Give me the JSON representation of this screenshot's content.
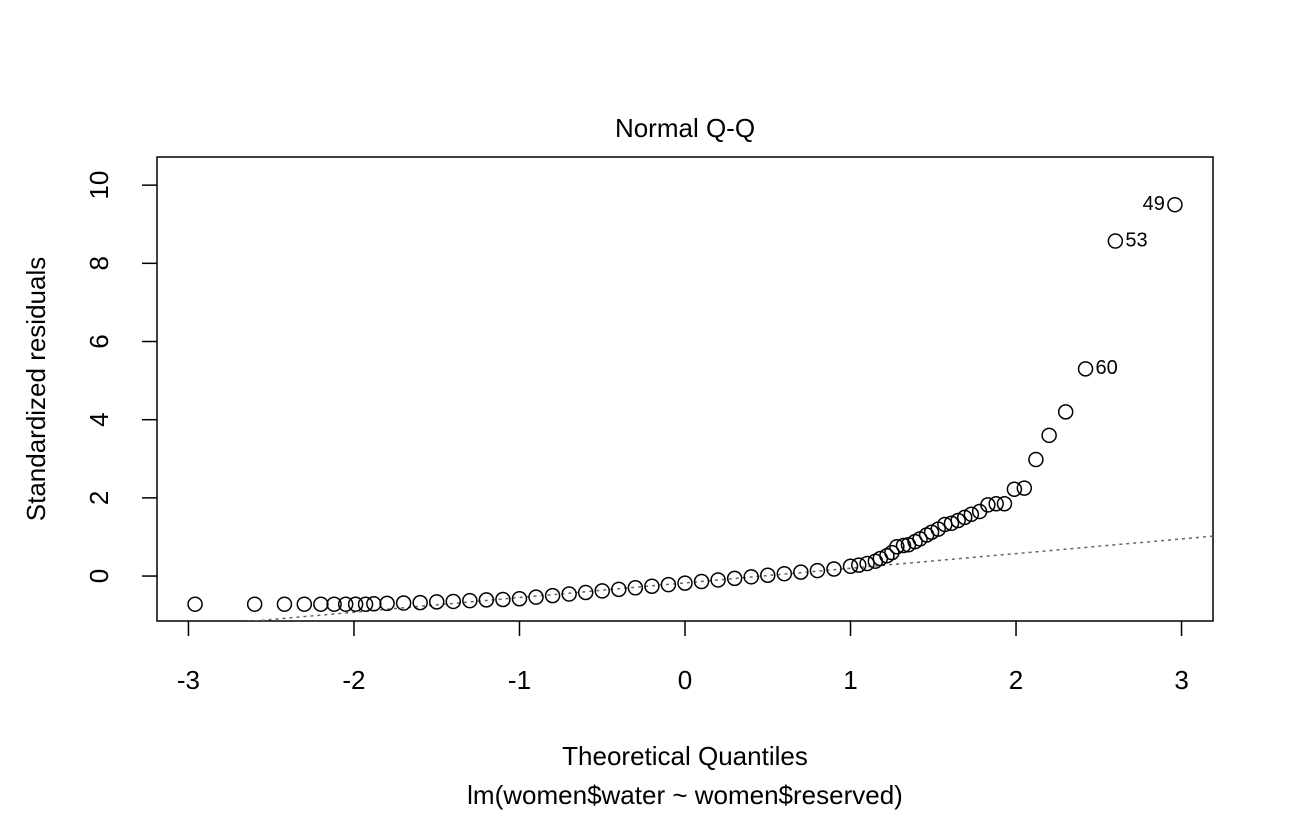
{
  "chart_data": {
    "type": "scatter",
    "title": "Normal Q-Q",
    "xlabel": "Theoretical Quantiles",
    "ylabel": "Standardized residuals",
    "subtitle": "lm(women$water ~ women$reserved)",
    "x": [
      -2.96,
      -2.6,
      -2.42,
      -2.3,
      -2.2,
      -2.12,
      -2.05,
      -1.99,
      -1.93,
      -1.88,
      -1.8,
      -1.7,
      -1.6,
      -1.5,
      -1.4,
      -1.3,
      -1.2,
      -1.1,
      -1.0,
      -0.9,
      -0.8,
      -0.7,
      -0.6,
      -0.5,
      -0.4,
      -0.3,
      -0.2,
      -0.1,
      0,
      0.1,
      0.2,
      0.3,
      0.4,
      0.5,
      0.6,
      0.7,
      0.8,
      0.9,
      1.0,
      1.05,
      1.1,
      1.15,
      1.18,
      1.22,
      1.25,
      1.28,
      1.32,
      1.35,
      1.39,
      1.42,
      1.46,
      1.49,
      1.53,
      1.57,
      1.61,
      1.65,
      1.69,
      1.73,
      1.78,
      1.83,
      1.88,
      1.93,
      1.99,
      2.05,
      2.12,
      2.2,
      2.3,
      2.42,
      2.6,
      2.96
    ],
    "values": [
      -0.72,
      -0.72,
      -0.72,
      -0.72,
      -0.72,
      -0.72,
      -0.72,
      -0.72,
      -0.72,
      -0.71,
      -0.7,
      -0.69,
      -0.68,
      -0.66,
      -0.65,
      -0.63,
      -0.61,
      -0.6,
      -0.58,
      -0.54,
      -0.5,
      -0.46,
      -0.42,
      -0.38,
      -0.34,
      -0.3,
      -0.26,
      -0.22,
      -0.18,
      -0.14,
      -0.1,
      -0.06,
      -0.02,
      0.02,
      0.06,
      0.1,
      0.14,
      0.18,
      0.25,
      0.28,
      0.32,
      0.38,
      0.45,
      0.52,
      0.6,
      0.75,
      0.78,
      0.8,
      0.88,
      0.95,
      1.05,
      1.12,
      1.2,
      1.32,
      1.35,
      1.42,
      1.5,
      1.58,
      1.65,
      1.82,
      1.85,
      1.85,
      2.22,
      2.25,
      2.98,
      3.6,
      4.2,
      5.3,
      8.57,
      9.5
    ],
    "point_labels": [
      null,
      null,
      null,
      null,
      null,
      null,
      null,
      null,
      null,
      null,
      null,
      null,
      null,
      null,
      null,
      null,
      null,
      null,
      null,
      null,
      null,
      null,
      null,
      null,
      null,
      null,
      null,
      null,
      null,
      null,
      null,
      null,
      null,
      null,
      null,
      null,
      null,
      null,
      null,
      null,
      null,
      null,
      null,
      null,
      null,
      null,
      null,
      null,
      null,
      null,
      null,
      null,
      null,
      null,
      null,
      null,
      null,
      null,
      null,
      null,
      null,
      null,
      null,
      null,
      null,
      null,
      null,
      "60",
      "53",
      "49"
    ],
    "reference_line": {
      "intercept": -0.175,
      "slope": 0.375
    },
    "xlim": [
      -3.19,
      3.19
    ],
    "ylim": [
      -1.15,
      10.72
    ],
    "xticks": [
      -3,
      -2,
      -1,
      0,
      1,
      2,
      3
    ],
    "yticks": [
      0,
      2,
      4,
      6,
      8,
      10
    ],
    "color": "#000000"
  }
}
